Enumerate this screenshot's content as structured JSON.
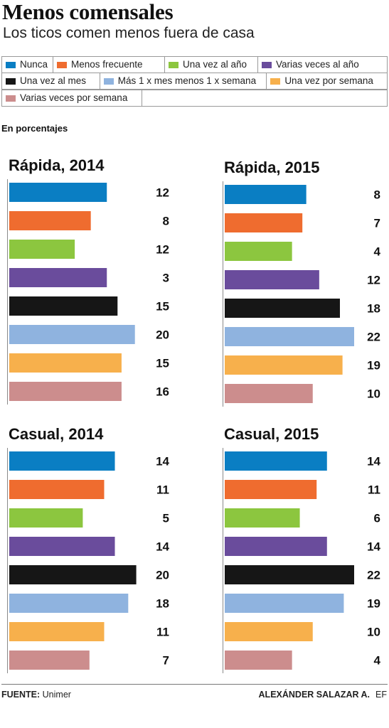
{
  "title": "Menos comensales",
  "subtitle": "Los ticos comen menos fuera de casa",
  "unit_note": "En porcentajes",
  "legend": [
    {
      "label": "Nunca",
      "color": "#0a7ec3"
    },
    {
      "label": "Menos frecuente",
      "color": "#ef6c2f"
    },
    {
      "label": "Una vez al año",
      "color": "#8cc63f"
    },
    {
      "label": "Varias veces al año",
      "color": "#6a4c9c"
    },
    {
      "label": "Una vez al mes",
      "color": "#161616"
    },
    {
      "label": "Más 1 x mes menos 1 x semana",
      "color": "#8fb3df"
    },
    {
      "label": "Una vez por semana",
      "color": "#f7b04c"
    },
    {
      "label": "Varias veces por semana",
      "color": "#cc8d8d"
    }
  ],
  "chart_data": [
    {
      "type": "bar",
      "orientation": "horizontal",
      "title": "Rápida, 2014",
      "categories": [
        "Nunca",
        "Menos frecuente",
        "Una vez al año",
        "Varias veces al año",
        "Una vez al mes",
        "Más 1 x mes menos 1 x semana",
        "Una vez por semana",
        "Varias veces por semana"
      ],
      "values": [
        12,
        8,
        12,
        3,
        15,
        20,
        15,
        16
      ],
      "bar_lengths": [
        0.73,
        0.61,
        0.49,
        0.73,
        0.81,
        0.94,
        0.84,
        0.84
      ],
      "labels": [
        "12",
        "8",
        "12",
        "3",
        "15",
        "20",
        "15",
        "16"
      ]
    },
    {
      "type": "bar",
      "orientation": "horizontal",
      "title": "Rápida, 2015",
      "categories": [
        "Nunca",
        "Menos frecuente",
        "Una vez al año",
        "Varias veces al año",
        "Una vez al mes",
        "Más 1 x mes menos 1 x semana",
        "Una vez por semana",
        "Varias veces por semana"
      ],
      "values": [
        8,
        7,
        4,
        12,
        18,
        22,
        19,
        10
      ],
      "bar_lengths": [
        0.63,
        0.6,
        0.52,
        0.73,
        0.89,
        1.0,
        0.91,
        0.68
      ],
      "labels": [
        "8",
        "7",
        "4",
        "12",
        "18",
        "22",
        "19",
        "10"
      ]
    },
    {
      "type": "bar",
      "orientation": "horizontal",
      "title": "Casual, 2014",
      "categories": [
        "Nunca",
        "Menos frecuente",
        "Una vez al año",
        "Varias veces al año",
        "Una vez al mes",
        "Más 1 x mes menos 1 x semana",
        "Una vez por semana",
        "Varias veces por semana"
      ],
      "values": [
        14,
        11,
        5,
        14,
        20,
        18,
        11,
        7
      ],
      "bar_lengths": [
        0.79,
        0.71,
        0.55,
        0.79,
        0.95,
        0.89,
        0.71,
        0.6
      ],
      "labels": [
        "14",
        "11",
        "5",
        "14",
        "20",
        "18",
        "11",
        "7"
      ]
    },
    {
      "type": "bar",
      "orientation": "horizontal",
      "title": "Casual, 2015",
      "categories": [
        "Nunca",
        "Menos frecuente",
        "Una vez al año",
        "Varias veces al año",
        "Una vez al mes",
        "Más 1 x mes menos 1 x semana",
        "Una vez por semana",
        "Varias veces por semana"
      ],
      "values": [
        14,
        11,
        6,
        14,
        22,
        19,
        10,
        4
      ],
      "bar_lengths": [
        0.79,
        0.71,
        0.58,
        0.79,
        1.0,
        0.92,
        0.68,
        0.52
      ],
      "labels": [
        "14",
        "11",
        "6",
        "14",
        "22",
        "19",
        "10",
        "4"
      ]
    }
  ],
  "footer": {
    "source_label": "FUENTE:",
    "source_value": "Unimer",
    "author": "ALEXÁNDER SALAZAR A.",
    "agency": "EF"
  }
}
